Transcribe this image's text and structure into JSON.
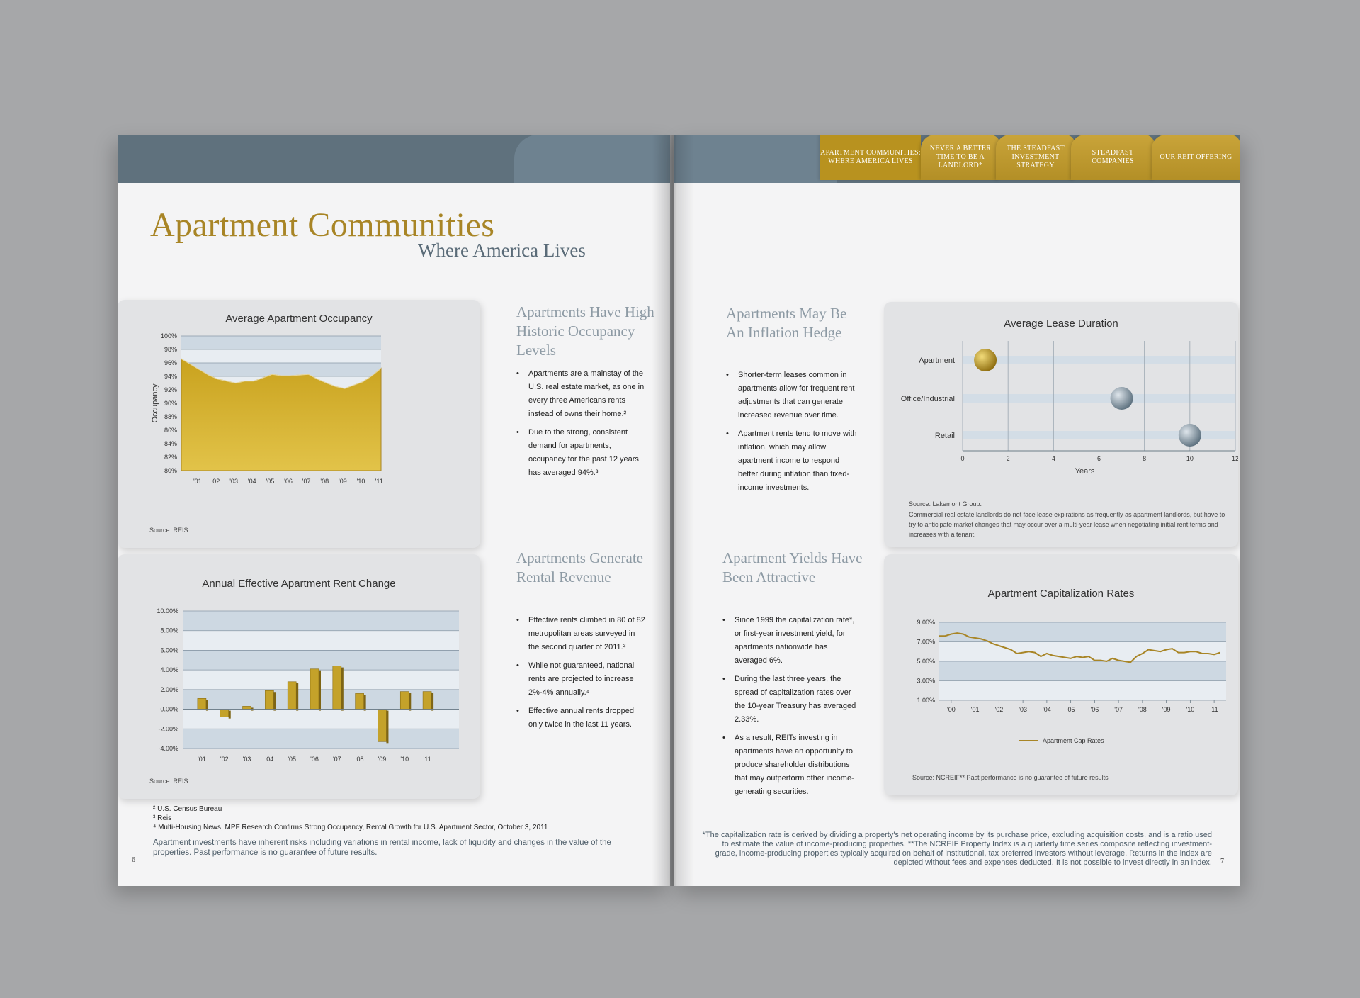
{
  "nav": {
    "tabs": [
      {
        "label": "APARTMENT COMMUNITIES: WHERE AMERICA LIVES",
        "active": true
      },
      {
        "label": "NEVER A BETTER TIME TO BE A LANDLORD*",
        "active": false
      },
      {
        "label": "THE STEADFAST INVESTMENT STRATEGY",
        "active": false
      },
      {
        "label": "STEADFAST COMPANIES",
        "active": false
      },
      {
        "label": "OUR REIT OFFERING",
        "active": false
      }
    ]
  },
  "header": {
    "title": "Apartment Communities",
    "subtitle": "Where America Lives"
  },
  "sections": {
    "occupancy": {
      "heading": "Apartments Have High Historic Occupancy Levels",
      "bullets": [
        "Apartments are a mainstay of the U.S. real estate market, as one in every three Americans rents instead of owns their home.²",
        "Due to the strong, consistent demand for apartments, occupancy for the past 12 years has averaged 94%.³"
      ]
    },
    "rental": {
      "heading": "Apartments Generate Rental Revenue",
      "bullets": [
        "Effective rents climbed in 80 of 82 metropolitan areas surveyed in the second quarter of 2011.³",
        "While not guaranteed, national rents are projected to increase 2%-4% annually.⁴",
        "Effective annual rents dropped only twice in the last 11 years."
      ]
    },
    "inflation": {
      "heading": "Apartments May Be An Inflation Hedge",
      "bullets": [
        "Shorter-term leases common in apartments allow for frequent rent adjustments that can generate increased revenue over time.",
        "Apartment rents tend to move with inflation, which may allow apartment income to respond better during inflation than fixed-income investments."
      ]
    },
    "yields": {
      "heading": "Apartment Yields Have Been Attractive",
      "bullets": [
        "Since 1999 the capitalization rate*, or first-year investment yield, for apartments nationwide has averaged 6%.",
        "During the last three years, the spread of capitalization rates over the 10-year Treasury has averaged 2.33%.",
        "As a result, REITs investing in apartments have an opportunity to produce shareholder distributions that may outperform other income-generating securities."
      ]
    }
  },
  "chart_data": [
    {
      "type": "area",
      "title": "Average Apartment Occupancy",
      "ylabel": "Occupancy",
      "ylim": [
        80,
        100
      ],
      "yticks": [
        "100%",
        "98%",
        "96%",
        "94%",
        "92%",
        "90%",
        "88%",
        "86%",
        "84%",
        "82%",
        "80%"
      ],
      "categories": [
        "'01",
        "'02",
        "'03",
        "'04",
        "'05",
        "'06",
        "'07",
        "'08",
        "'09",
        "'10",
        "'11"
      ],
      "x": [
        2000,
        2000.5,
        2001,
        2001.5,
        2002,
        2002.5,
        2003,
        2003.5,
        2004,
        2004.5,
        2005,
        2005.5,
        2006,
        2006.5,
        2007,
        2007.5,
        2008,
        2008.5,
        2009,
        2009.5,
        2010,
        2010.5,
        2011
      ],
      "values": [
        96.6,
        95.8,
        95.0,
        94.2,
        93.6,
        93.3,
        93.0,
        93.3,
        93.3,
        93.8,
        94.3,
        94.1,
        94.1,
        94.2,
        94.3,
        93.6,
        93.0,
        92.5,
        92.2,
        92.7,
        93.2,
        94.1,
        95.2
      ],
      "source": "Source: REIS",
      "grid": true
    },
    {
      "type": "bar",
      "title": "Annual Effective Apartment Rent Change",
      "ylim": [
        -4,
        10
      ],
      "yticks": [
        "10.00%",
        "8.00%",
        "6.00%",
        "4.00%",
        "2.00%",
        "0.00%",
        "-2.00%",
        "-4.00%"
      ],
      "categories": [
        "'01",
        "'02",
        "'03",
        "'04",
        "'05",
        "'06",
        "'07",
        "'08",
        "'09",
        "'10",
        "'11"
      ],
      "values": [
        1.1,
        -0.8,
        0.3,
        1.9,
        2.8,
        4.1,
        4.4,
        1.6,
        -3.3,
        1.8,
        1.8
      ],
      "source": "Source: REIS",
      "grid": true
    },
    {
      "type": "scatter",
      "title": "Average Lease Duration",
      "xlabel": "Years",
      "xlim": [
        0,
        12
      ],
      "xticks": [
        "0",
        "2",
        "4",
        "6",
        "8",
        "10",
        "12"
      ],
      "categories": [
        "Apartment",
        "Office/Industrial",
        "Retail"
      ],
      "values": [
        1,
        7,
        10
      ],
      "colors": [
        "#b8931c",
        "#7d93a3",
        "#7d93a3"
      ],
      "source": "Source: Lakemont Group.",
      "note": "Commercial real estate landlords do not face lease expirations as frequently as apartment landlords, but have to try to anticipate market changes that may occur over a multi-year lease when negotiating initial rent terms and increases with a tenant."
    },
    {
      "type": "line",
      "title": "Apartment Capitalization Rates",
      "ylim": [
        1,
        9
      ],
      "yticks": [
        "9.00%",
        "7.00%",
        "5.00%",
        "3.00%",
        "1.00%"
      ],
      "categories": [
        "'00",
        "'01",
        "'02",
        "'03",
        "'04",
        "'05",
        "'06",
        "'07",
        "'08",
        "'09",
        "'10",
        "'11"
      ],
      "series": [
        {
          "name": "Apartment Cap Rates",
          "color": "#a88526",
          "x": [
            1999.5,
            1999.75,
            2000,
            2000.25,
            2000.5,
            2000.75,
            2001,
            2001.25,
            2001.5,
            2001.75,
            2002,
            2002.25,
            2002.5,
            2002.75,
            2003,
            2003.25,
            2003.5,
            2003.75,
            2004,
            2004.25,
            2004.5,
            2004.75,
            2005,
            2005.25,
            2005.5,
            2005.75,
            2006,
            2006.25,
            2006.5,
            2006.75,
            2007,
            2007.25,
            2007.5,
            2007.75,
            2008,
            2008.25,
            2008.5,
            2008.75,
            2009,
            2009.25,
            2009.5,
            2009.75,
            2010,
            2010.25,
            2010.5,
            2010.75,
            2011,
            2011.25
          ],
          "values": [
            7.6,
            7.6,
            7.8,
            7.9,
            7.8,
            7.5,
            7.4,
            7.3,
            7.1,
            6.8,
            6.6,
            6.4,
            6.2,
            5.8,
            5.9,
            6.0,
            5.9,
            5.5,
            5.8,
            5.6,
            5.5,
            5.4,
            5.3,
            5.5,
            5.4,
            5.5,
            5.1,
            5.1,
            5.0,
            5.3,
            5.1,
            5.0,
            4.9,
            5.5,
            5.8,
            6.2,
            6.1,
            6.0,
            6.2,
            6.3,
            5.9,
            5.9,
            6.0,
            6.0,
            5.8,
            5.8,
            5.7,
            5.9
          ]
        }
      ],
      "source": "Source: NCREIF**  Past performance is no guarantee of future results"
    }
  ],
  "footnotes": {
    "left": [
      "² U.S. Census Bureau",
      "³ Reis",
      "⁴ Multi-Housing News, MPF Research Confirms Strong Occupancy, Rental Growth for U.S. Apartment Sector, October 3, 2011"
    ],
    "left_disclaimer": "Apartment investments have inherent risks including variations in rental income, lack of liquidity and changes in the value of the properties. Past performance is no guarantee of future results.",
    "right": "*The capitalization rate is derived by dividing a property's net operating income by its purchase price, excluding acquisition costs, and is a ratio used to estimate the value of income-producing properties. **The NCREIF Property Index is a quarterly time series composite reflecting investment-grade, income-producing properties typically acquired on behalf of institutional, tax preferred investors without leverage. Returns in the index are depicted without fees and expenses deducted. It is not possible to invest directly in an index."
  },
  "page_numbers": {
    "left": "6",
    "right": "7"
  },
  "colors": {
    "gold": "#a88526",
    "slate": "#5f717d",
    "band_blue": "#d3dde6"
  }
}
